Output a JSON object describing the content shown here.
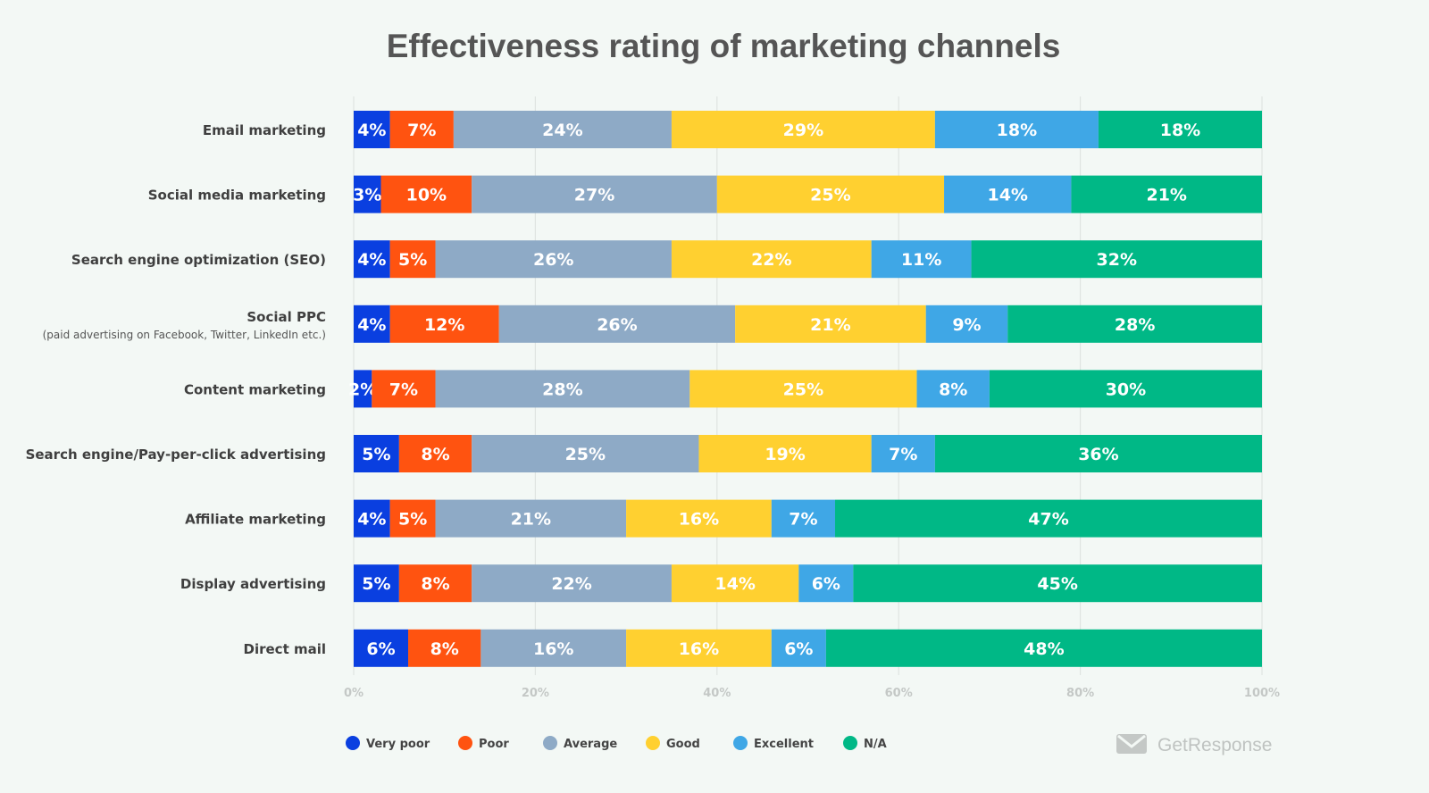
{
  "chart_data": {
    "type": "bar",
    "orientation": "horizontal",
    "stacked": true,
    "title": "Effectiveness rating of marketing channels",
    "categories": [
      "Email marketing",
      "Social media marketing",
      "Search engine optimization (SEO)",
      "Social PPC",
      "Content marketing",
      "Search engine/Pay-per-click advertising",
      "Affiliate marketing",
      "Display advertising",
      "Direct mail"
    ],
    "category_sublabels": {
      "Social PPC": "(paid advertising on Facebook, Twitter, LinkedIn etc.)"
    },
    "series": [
      {
        "name": "Very poor",
        "color": "#0a3fe0",
        "values": [
          4,
          3,
          4,
          4,
          2,
          5,
          4,
          5,
          6
        ]
      },
      {
        "name": "Poor",
        "color": "#ff5310",
        "values": [
          7,
          10,
          5,
          12,
          7,
          8,
          5,
          8,
          8
        ]
      },
      {
        "name": "Average",
        "color": "#8eaac6",
        "values": [
          24,
          27,
          26,
          26,
          28,
          25,
          21,
          22,
          16
        ]
      },
      {
        "name": "Good",
        "color": "#ffd030",
        "values": [
          29,
          25,
          22,
          21,
          25,
          19,
          16,
          14,
          16
        ]
      },
      {
        "name": "Excellent",
        "color": "#3fa7e6",
        "values": [
          18,
          14,
          11,
          9,
          8,
          7,
          7,
          6,
          6
        ]
      },
      {
        "name": "N/A",
        "color": "#00b886",
        "values": [
          18,
          21,
          32,
          28,
          30,
          36,
          47,
          45,
          48
        ]
      }
    ],
    "xlim": [
      0,
      100
    ],
    "xticks": [
      "0%",
      "20%",
      "40%",
      "60%",
      "80%",
      "100%"
    ],
    "grid": true,
    "legend_position": "bottom-left",
    "value_suffix": "%"
  },
  "brand": {
    "name": "GetResponse",
    "icon": "envelope-logo-icon"
  }
}
